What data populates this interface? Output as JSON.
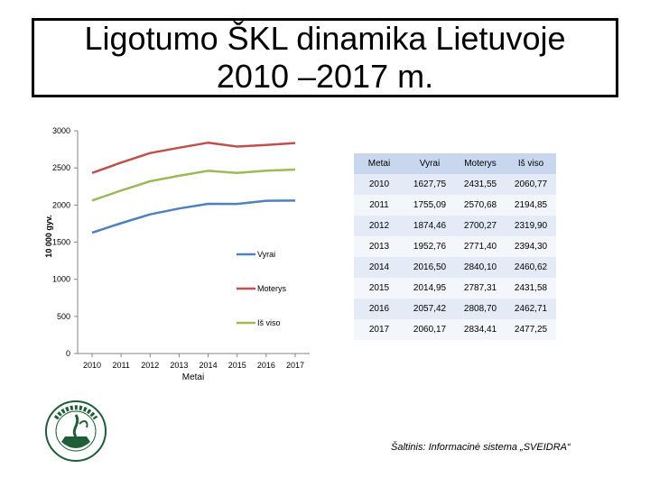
{
  "slide": {
    "title": "Ligotumo ŠKL dinamika Lietuvoje 2010 –2017 m.",
    "source": "Šaltinis: Informacinė sistema „SVEIDRA“"
  },
  "logo": {
    "icon": "institute-seal-icon"
  },
  "chart_data": {
    "type": "line",
    "x": [
      2010,
      2011,
      2012,
      2013,
      2014,
      2015,
      2016,
      2017
    ],
    "xlabel": "Metai",
    "ylabel": "10 000 gyv.",
    "ylim": [
      0,
      3000
    ],
    "yticks": [
      0,
      500,
      1000,
      1500,
      2000,
      2500,
      3000
    ],
    "grid": false,
    "legend_position": "center",
    "series": [
      {
        "name": "Vyrai",
        "color": "#4f81bd",
        "values": [
          1627.75,
          1755.09,
          1874.46,
          1952.76,
          2016.5,
          2014.95,
          2057.42,
          2060.17
        ]
      },
      {
        "name": "Moterys",
        "color": "#c0504d",
        "values": [
          2431.55,
          2570.68,
          2700.27,
          2771.4,
          2840.1,
          2787.31,
          2808.7,
          2834.41
        ]
      },
      {
        "name": "Iš viso",
        "color": "#9bbb59",
        "values": [
          2060.77,
          2194.85,
          2319.9,
          2394.3,
          2460.62,
          2431.58,
          2462.71,
          2477.25
        ]
      }
    ]
  },
  "table": {
    "headers": [
      "Metai",
      "Vyrai",
      "Moterys",
      "Iš viso"
    ],
    "rows": [
      [
        "2010",
        "1627,75",
        "2431,55",
        "2060,77"
      ],
      [
        "2011",
        "1755,09",
        "2570,68",
        "2194,85"
      ],
      [
        "2012",
        "1874,46",
        "2700,27",
        "2319,90"
      ],
      [
        "2013",
        "1952,76",
        "2771,40",
        "2394,30"
      ],
      [
        "2014",
        "2016,50",
        "2840,10",
        "2460,62"
      ],
      [
        "2015",
        "2014,95",
        "2787,31",
        "2431,58"
      ],
      [
        "2016",
        "2057,42",
        "2808,70",
        "2462,71"
      ],
      [
        "2017",
        "2060,17",
        "2834,41",
        "2477,25"
      ]
    ]
  }
}
